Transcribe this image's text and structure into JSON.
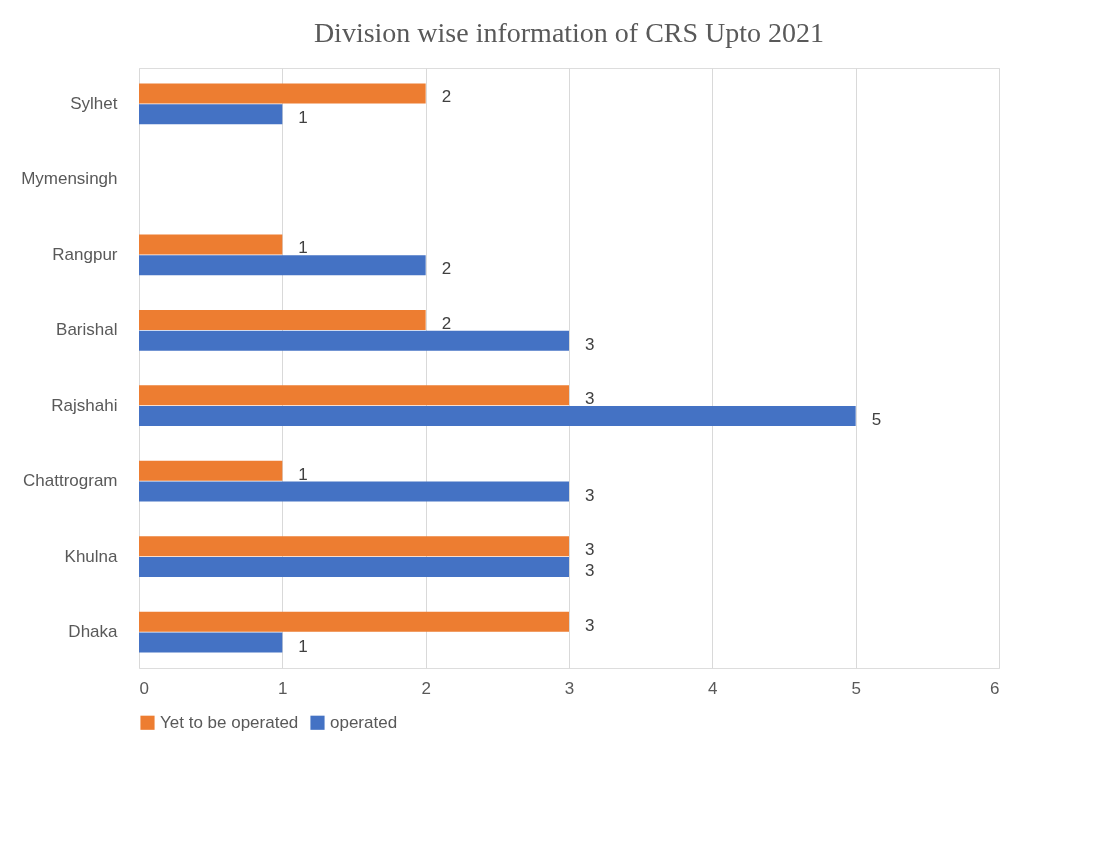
{
  "chart_data": {
    "type": "bar",
    "orientation": "horizontal",
    "title": "Division wise information of CRS Upto 2021",
    "categories": [
      "Sylhet",
      "Mymensingh",
      "Rangpur",
      "Barishal",
      "Rajshahi",
      "Chattrogram",
      "Khulna",
      "Dhaka"
    ],
    "series": [
      {
        "name": "Yet to be operated",
        "color": "#ed7d31",
        "values": [
          2,
          null,
          1,
          2,
          3,
          1,
          3,
          3
        ]
      },
      {
        "name": "operated",
        "color": "#4472c4",
        "values": [
          1,
          null,
          2,
          3,
          5,
          3,
          3,
          1
        ]
      }
    ],
    "xlim": [
      0,
      6
    ],
    "xticks": [
      0,
      1,
      2,
      3,
      4,
      5,
      6
    ],
    "grid": "x",
    "legend": "bottom",
    "data_labels": true
  }
}
